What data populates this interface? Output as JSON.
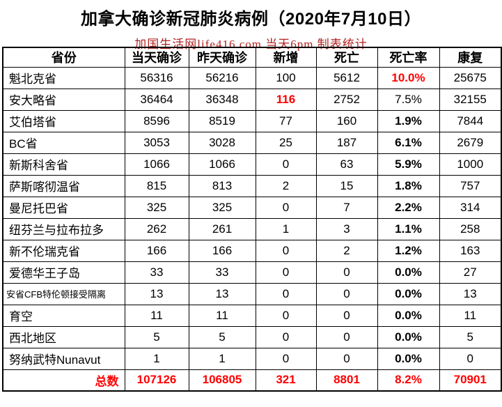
{
  "page": {
    "title": "加拿大确诊新冠肺炎病例（2020年7月10日）",
    "subtitle": "加国生活网life416.com 当天6pm 制表统计"
  },
  "colors": {
    "highlight_red": "#ff0000",
    "subtitle_red": "#b22222",
    "border_black": "#000000",
    "background": "#ffffff"
  },
  "chart_data": {
    "type": "table",
    "title": "加拿大确诊新冠肺炎病例（2020年7月10日）",
    "subtitle": "加国生活网life416.com 当天6pm 制表统计",
    "columns": [
      "省份",
      "当天确诊",
      "昨天确诊",
      "新增",
      "死亡",
      "死亡率",
      "康复"
    ],
    "rows": [
      {
        "province": "魁北克省",
        "today": "56316",
        "yesterday": "56216",
        "new_cases": "100",
        "deaths": "5612",
        "death_rate": "10.0%",
        "recovered": "25675",
        "death_rate_style": "red-bold"
      },
      {
        "province": "安大略省",
        "today": "36464",
        "yesterday": "36348",
        "new_cases": "116",
        "deaths": "2752",
        "death_rate": "7.5%",
        "recovered": "32155",
        "new_style": "red-bold",
        "death_rate_style": "normal"
      },
      {
        "province": "艾伯塔省",
        "today": "8596",
        "yesterday": "8519",
        "new_cases": "77",
        "deaths": "160",
        "death_rate": "1.9%",
        "recovered": "7844",
        "death_rate_style": "bold"
      },
      {
        "province": "BC省",
        "today": "3053",
        "yesterday": "3028",
        "new_cases": "25",
        "deaths": "187",
        "death_rate": "6.1%",
        "recovered": "2679",
        "death_rate_style": "bold"
      },
      {
        "province": "新斯科舍省",
        "today": "1066",
        "yesterday": "1066",
        "new_cases": "0",
        "deaths": "63",
        "death_rate": "5.9%",
        "recovered": "1000",
        "death_rate_style": "bold"
      },
      {
        "province": "萨斯喀彻温省",
        "today": "815",
        "yesterday": "813",
        "new_cases": "2",
        "deaths": "15",
        "death_rate": "1.8%",
        "recovered": "757",
        "death_rate_style": "bold"
      },
      {
        "province": "曼尼托巴省",
        "today": "325",
        "yesterday": "325",
        "new_cases": "0",
        "deaths": "7",
        "death_rate": "2.2%",
        "recovered": "314",
        "death_rate_style": "bold"
      },
      {
        "province": "纽芬兰与拉布拉多",
        "today": "262",
        "yesterday": "261",
        "new_cases": "1",
        "deaths": "3",
        "death_rate": "1.1%",
        "recovered": "258",
        "death_rate_style": "bold"
      },
      {
        "province": "新不伦瑞克省",
        "today": "166",
        "yesterday": "166",
        "new_cases": "0",
        "deaths": "2",
        "death_rate": "1.2%",
        "recovered": "163",
        "death_rate_style": "bold"
      },
      {
        "province": "爱德华王子岛",
        "today": "33",
        "yesterday": "33",
        "new_cases": "0",
        "deaths": "0",
        "death_rate": "0.0%",
        "recovered": "27",
        "death_rate_style": "bold"
      },
      {
        "province": "安省CFB特伦顿接受隔离",
        "today": "13",
        "yesterday": "13",
        "new_cases": "0",
        "deaths": "0",
        "death_rate": "0.0%",
        "recovered": "13",
        "death_rate_style": "bold",
        "small": true
      },
      {
        "province": "育空",
        "today": "11",
        "yesterday": "11",
        "new_cases": "0",
        "deaths": "0",
        "death_rate": "0.0%",
        "recovered": "11",
        "death_rate_style": "bold"
      },
      {
        "province": "西北地区",
        "today": "5",
        "yesterday": "5",
        "new_cases": "0",
        "deaths": "0",
        "death_rate": "0.0%",
        "recovered": "5",
        "death_rate_style": "bold"
      },
      {
        "province": "努纳武特Nunavut",
        "today": "1",
        "yesterday": "1",
        "new_cases": "0",
        "deaths": "0",
        "death_rate": "0.0%",
        "recovered": "0",
        "death_rate_style": "bold"
      }
    ],
    "totals": {
      "label": "总数",
      "today": "107126",
      "yesterday": "106805",
      "new_cases": "321",
      "deaths": "8801",
      "death_rate": "8.2%",
      "recovered": "70901"
    }
  }
}
